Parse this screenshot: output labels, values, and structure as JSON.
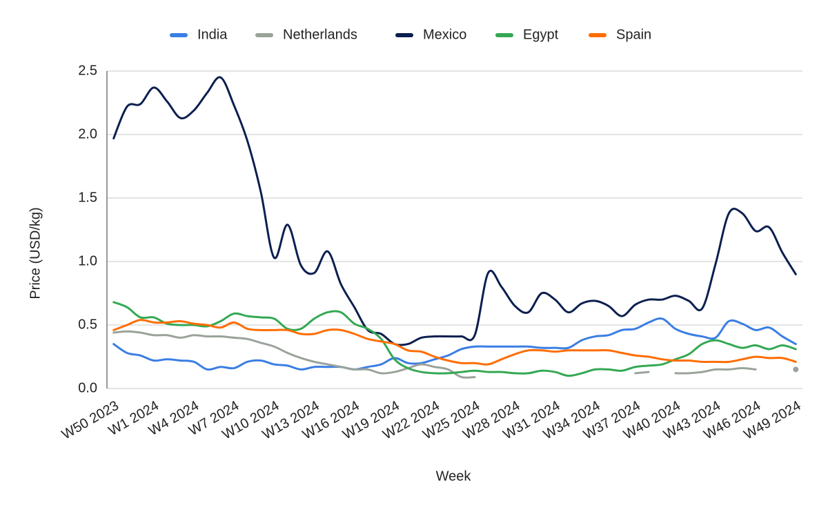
{
  "chart_data": {
    "type": "line",
    "x_label": "Week",
    "y_label": "Price (USD/kg)",
    "categories": [
      "W50 2023",
      null,
      null,
      "W1 2024",
      null,
      null,
      "W4 2024",
      null,
      null,
      "W7 2024",
      null,
      null,
      "W10 2024",
      null,
      null,
      "W13 2024",
      null,
      null,
      "W16 2024",
      null,
      null,
      "W19 2024",
      null,
      null,
      "W22 2024",
      null,
      null,
      "W25 2024",
      null,
      null,
      "W28 2024",
      null,
      null,
      "W31 2024",
      null,
      null,
      "W34 2024",
      null,
      null,
      "W37 2024",
      null,
      null,
      "W40 2024",
      null,
      null,
      "W43 2024",
      null,
      null,
      "W46 2024",
      null,
      null,
      "W49 2024"
    ],
    "ylim": [
      0,
      2.5
    ],
    "yticks": [
      {
        "value": 0,
        "label": "0.0"
      },
      0.5,
      {
        "value": 1,
        "label": "1.0"
      },
      1.5,
      {
        "value": 2,
        "label": "2.0"
      },
      2.5
    ],
    "grid": true,
    "legend": "top",
    "series": [
      {
        "name": "India",
        "color": "#3a7ee4",
        "values": [
          0.35,
          0.28,
          0.26,
          0.22,
          0.23,
          0.22,
          0.21,
          0.15,
          0.17,
          0.16,
          0.21,
          0.22,
          0.19,
          0.18,
          0.15,
          0.17,
          0.17,
          0.17,
          0.15,
          0.17,
          0.19,
          0.24,
          0.2,
          0.2,
          0.23,
          0.26,
          0.31,
          0.33,
          0.33,
          0.33,
          0.33,
          0.33,
          0.32,
          0.32,
          0.32,
          0.38,
          0.41,
          0.42,
          0.46,
          0.47,
          0.52,
          0.55,
          0.47,
          0.43,
          0.41,
          0.4,
          0.53,
          0.51,
          0.46,
          0.48,
          0.41,
          0.35
        ]
      },
      {
        "name": "Netherlands",
        "color": "#9aa39a",
        "values": [
          0.44,
          0.45,
          0.44,
          0.42,
          0.42,
          0.4,
          0.42,
          0.41,
          0.41,
          0.4,
          0.39,
          0.36,
          0.33,
          0.28,
          0.24,
          0.21,
          0.19,
          0.17,
          0.15,
          0.15,
          0.12,
          0.13,
          0.16,
          0.19,
          0.17,
          0.15,
          0.09,
          0.09,
          null,
          null,
          null,
          null,
          null,
          null,
          null,
          null,
          null,
          null,
          null,
          0.12,
          0.13,
          null,
          0.12,
          0.12,
          0.13,
          0.15,
          0.15,
          0.16,
          0.15,
          null,
          null,
          0.15
        ]
      },
      {
        "name": "Mexico",
        "color": "#0b1f4f",
        "values": [
          1.97,
          2.22,
          2.24,
          2.37,
          2.26,
          2.13,
          2.19,
          2.33,
          2.45,
          2.23,
          1.95,
          1.55,
          1.03,
          1.29,
          0.97,
          0.91,
          1.08,
          0.82,
          0.64,
          0.46,
          0.43,
          0.35,
          0.35,
          0.4,
          0.41,
          0.41,
          0.41,
          0.42,
          0.91,
          0.8,
          0.65,
          0.6,
          0.75,
          0.7,
          0.6,
          0.67,
          0.69,
          0.65,
          0.57,
          0.66,
          0.7,
          0.7,
          0.73,
          0.69,
          0.63,
          0.98,
          1.38,
          1.38,
          1.24,
          1.27,
          1.07,
          0.9
        ]
      },
      {
        "name": "Egypt",
        "color": "#34a853",
        "values": [
          0.68,
          0.64,
          0.56,
          0.56,
          0.51,
          0.5,
          0.5,
          0.49,
          0.53,
          0.59,
          0.57,
          0.56,
          0.55,
          0.47,
          0.47,
          0.55,
          0.6,
          0.6,
          0.51,
          0.47,
          0.39,
          0.23,
          0.16,
          0.13,
          0.12,
          0.12,
          0.13,
          0.14,
          0.13,
          0.13,
          0.12,
          0.12,
          0.14,
          0.13,
          0.1,
          0.12,
          0.15,
          0.15,
          0.14,
          0.17,
          0.18,
          0.19,
          0.23,
          0.27,
          0.35,
          0.38,
          0.35,
          0.32,
          0.34,
          0.31,
          0.34,
          0.31
        ]
      },
      {
        "name": "Spain",
        "color": "#ff6d01",
        "values": [
          0.46,
          0.5,
          0.54,
          0.52,
          0.52,
          0.53,
          0.51,
          0.5,
          0.48,
          0.52,
          0.47,
          0.46,
          0.46,
          0.46,
          0.43,
          0.43,
          0.46,
          0.46,
          0.43,
          0.39,
          0.37,
          0.35,
          0.3,
          0.29,
          0.25,
          0.22,
          0.2,
          0.2,
          0.19,
          0.23,
          0.27,
          0.3,
          0.3,
          0.29,
          0.3,
          0.3,
          0.3,
          0.3,
          0.28,
          0.26,
          0.25,
          0.23,
          0.22,
          0.22,
          0.21,
          0.21,
          0.21,
          0.23,
          0.25,
          0.24,
          0.24,
          0.21
        ]
      }
    ]
  }
}
